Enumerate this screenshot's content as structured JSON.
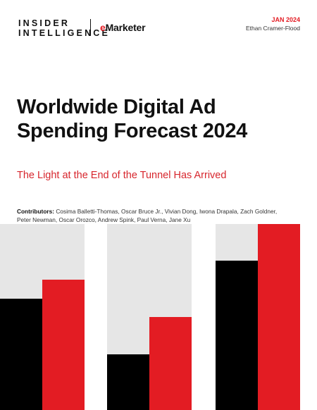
{
  "header": {
    "brand_line1": "INSIDER",
    "brand_line2": "INTELLIGENCE",
    "partner_prefix": "e",
    "partner_name": "Marketer",
    "date": "JAN 2024",
    "author": "Ethan Cramer-Flood"
  },
  "report": {
    "title_line1": "Worldwide Digital Ad",
    "title_line2": "Spending Forecast 2024",
    "subtitle": "The Light at the End of the Tunnel Has Arrived",
    "contributors_label": "Contributors:",
    "contributors_line1": "Cosima Balletti-Thomas, Oscar Bruce Jr., Vivian Dong, Iwona Drapala, Zach Goldner,",
    "contributors_line2": "Peter Newman, Oscar Orozco, Andrew Spink, Paul Verna, Jane Xu"
  },
  "colors": {
    "accent": "#e31c23",
    "dark": "#000000",
    "light_gray": "#e6e6e6"
  }
}
